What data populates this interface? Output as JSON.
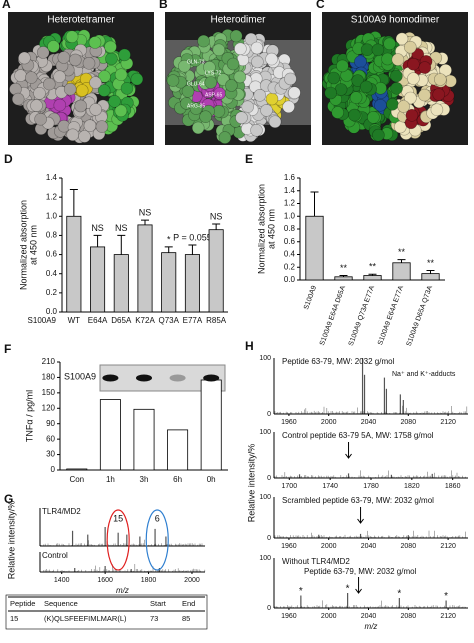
{
  "figure_panels": [
    {
      "label": "A",
      "title": "Heterotetramer"
    },
    {
      "label": "B",
      "title": "Heterodimer",
      "residues": [
        "GLN-73",
        "LYS-72",
        "GLU-64",
        "ASP-65",
        "ARG-85"
      ]
    },
    {
      "label": "C",
      "title": "S100A9 homodimer"
    }
  ],
  "chart_data": [
    {
      "type": "bar",
      "panel": "D",
      "ylabel": [
        "Normalized absorption",
        "at 450 nm"
      ],
      "xlabel": "S100A9",
      "categories": [
        "WT",
        "E64A",
        "D65A",
        "K72A",
        "Q73A",
        "E77A",
        "R85A"
      ],
      "values": [
        1.0,
        0.68,
        0.6,
        0.91,
        0.62,
        0.6,
        0.86
      ],
      "errors": [
        0.28,
        0.12,
        0.2,
        0.05,
        0.06,
        0.1,
        0.06
      ],
      "annotations": [
        null,
        "NS",
        "NS",
        "NS",
        "*",
        "P = 0.055",
        "NS"
      ],
      "color": "#c8c8c8",
      "ylim": [
        0,
        1.4
      ],
      "yticks": [
        {
          "value": 0,
          "label": "0.0"
        },
        0.2,
        0.4,
        0.6,
        0.8,
        {
          "value": 1,
          "label": "1.0"
        },
        1.2,
        1.4
      ]
    },
    {
      "type": "bar",
      "panel": "E",
      "ylabel": [
        "Normalized absorption",
        "at 450 nm"
      ],
      "categories": [
        "S100A9",
        "S100A9 E64A D65A",
        "S100A9 Q73A E77A",
        "S100A9 E64A E77A",
        "S100A9 D65A Q73A"
      ],
      "values": [
        1.0,
        0.05,
        0.07,
        0.27,
        0.1
      ],
      "errors": [
        0.38,
        0.02,
        0.02,
        0.05,
        0.05
      ],
      "annotations": [
        null,
        "**",
        "**",
        "**",
        "**"
      ],
      "color": "#c8c8c8",
      "ylim": [
        0,
        1.6
      ],
      "yticks": [
        {
          "value": 0,
          "label": "0.0"
        },
        0.2,
        0.4,
        0.6,
        0.8,
        {
          "value": 1,
          "label": "1.0"
        },
        1.2,
        1.4,
        1.6
      ]
    },
    {
      "type": "bar",
      "panel": "F",
      "ylabel": [
        "TNFα / pg/ml"
      ],
      "inset_label": "S100A9",
      "categories": [
        "Con",
        "1h",
        "3h",
        "6h",
        "0h"
      ],
      "values": [
        2,
        137,
        118,
        78,
        175
      ],
      "color": "#ffffff",
      "ylim": [
        0,
        210
      ],
      "yticks": [
        0,
        30,
        60,
        90,
        120,
        150,
        180,
        210
      ]
    },
    {
      "type": "spectrum",
      "panel": "G",
      "ylabel": "Relative intensity/%",
      "xlabel": "m/z",
      "xlim": [
        1300,
        2060
      ],
      "xticks": [
        1400,
        1600,
        1800,
        2000
      ],
      "ylim": [
        0,
        100
      ],
      "traces": [
        {
          "name": "TLR4/MD2",
          "x": [
            1450,
            1520,
            1600,
            1660,
            1700,
            1760,
            1830,
            1880
          ],
          "values": [
            40,
            30,
            50,
            35,
            30,
            25,
            45,
            25
          ]
        },
        {
          "name": "Control",
          "x": [
            1460,
            1600,
            1720,
            1850
          ],
          "values": [
            20,
            30,
            15,
            20
          ]
        }
      ],
      "annotations": [
        {
          "x": 1660,
          "label": "15",
          "color": "#e02020"
        },
        {
          "x": 1840,
          "label": "6",
          "color": "#2f7fd0"
        }
      ]
    },
    {
      "type": "spectrum",
      "panel": "H",
      "ylabel": "Relative intensity/%",
      "xlabel": "m/z",
      "ylim": [
        0,
        100
      ],
      "yticks": [
        0,
        100
      ],
      "traces": [
        {
          "name": "Peptide 63-79, MW: 2032 g/mol",
          "note": "Na⁺ and K⁺-adducts",
          "xlim": [
            1945,
            2140
          ],
          "xticks": [
            1960,
            2000,
            2040,
            2080,
            2120
          ],
          "x": [
            2034,
            2036,
            2056,
            2058,
            2072,
            2075
          ],
          "values": [
            100,
            70,
            65,
            45,
            35,
            25
          ]
        },
        {
          "name": "Control peptide 63-79 5A, MW: 1758 g/mol",
          "arrow": 1758,
          "xlim": [
            1685,
            1875
          ],
          "xticks": [
            1700,
            1740,
            1780,
            1820,
            1860
          ],
          "x": [
            1710,
            1758,
            1800,
            1840
          ],
          "values": [
            8,
            10,
            7,
            9
          ]
        },
        {
          "name": "Scrambled peptide 63-79, MW: 2032 g/mol",
          "arrow": 2032,
          "xlim": [
            1945,
            2140
          ],
          "xticks": [
            1960,
            2000,
            2040,
            2080,
            2120
          ],
          "x": [
            1990,
            2032,
            2080
          ],
          "values": [
            8,
            10,
            7
          ]
        },
        {
          "name": "Without TLR4/MD2",
          "subtitle": "Peptide 63-79, MW: 2032 g/mol",
          "arrow": 2030,
          "xlim": [
            1945,
            2140
          ],
          "xticks": [
            1960,
            2000,
            2040,
            2080,
            2120
          ],
          "x": [
            1972,
            2019,
            2071,
            2118
          ],
          "values": [
            25,
            30,
            20,
            15
          ],
          "marks": [
            "*",
            "*",
            "*",
            "*"
          ]
        }
      ]
    }
  ],
  "table": {
    "header": [
      "Peptide",
      "Sequence",
      "Start",
      "End"
    ],
    "rows": [
      [
        "15",
        "(K)QLSFEEFIMLMAR(L)",
        "73",
        "85"
      ]
    ]
  }
}
